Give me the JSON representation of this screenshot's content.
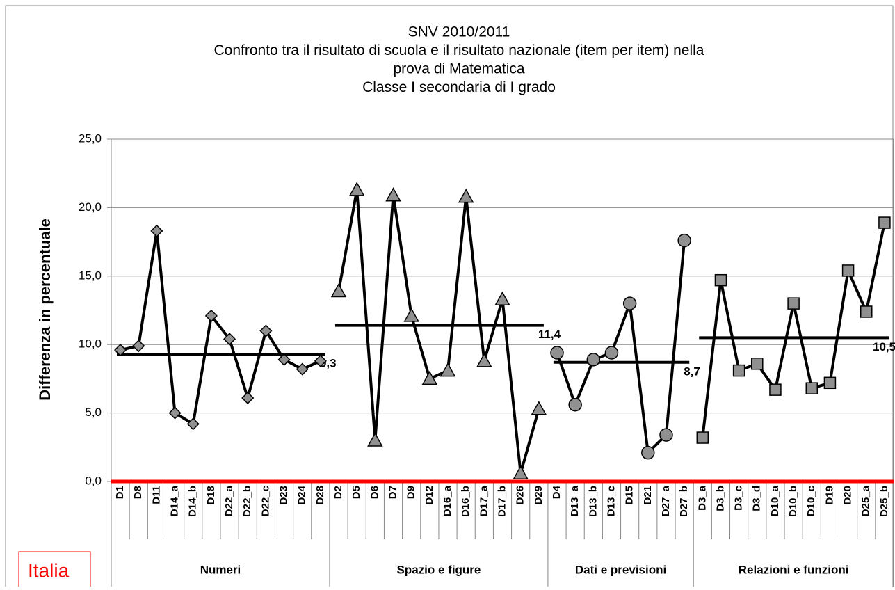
{
  "chart_data": {
    "type": "line",
    "title": [
      "SNV 2010/2011",
      "Confronto tra il risultato di scuola e il risultato nazionale (item per item) nella",
      "prova di Matematica",
      "Classe I secondaria di I grado"
    ],
    "y_label": "Differenza in percentuale",
    "ylim": [
      0,
      25
    ],
    "yticks": [
      {
        "value": 0,
        "label": "0,0"
      },
      {
        "value": 5,
        "label": "5,0"
      },
      {
        "value": 10,
        "label": "10,0"
      },
      {
        "value": 15,
        "label": "15,0"
      },
      {
        "value": 20,
        "label": "20,0"
      },
      {
        "value": 25,
        "label": "25,0"
      }
    ],
    "grid": true,
    "groups": [
      {
        "name": "Numeri",
        "marker": "diamond",
        "color": "#909090",
        "categories": [
          "D1",
          "D8",
          "D11",
          "D14_a",
          "D14_b",
          "D18",
          "D22_a",
          "D22_b",
          "D22_c",
          "D23",
          "D24",
          "D28"
        ],
        "values": [
          9.6,
          9.9,
          18.3,
          5.0,
          4.2,
          12.1,
          10.4,
          6.1,
          11.0,
          8.9,
          8.2,
          8.8
        ],
        "mean": 9.3,
        "mean_label": "9,3"
      },
      {
        "name": "Spazio e figure",
        "marker": "triangle",
        "color": "#909090",
        "categories": [
          "D2",
          "D5",
          "D6",
          "D7",
          "D9",
          "D12",
          "D16_a",
          "D16_b",
          "D17_a",
          "D17_b",
          "D26",
          "D29"
        ],
        "values": [
          13.9,
          21.3,
          3.0,
          20.9,
          12.1,
          7.5,
          8.1,
          20.8,
          8.8,
          13.3,
          0.6,
          5.3
        ],
        "mean": 11.4,
        "mean_label": "11,4"
      },
      {
        "name": "Dati e previsioni",
        "marker": "circle",
        "color": "#909090",
        "categories": [
          "D4",
          "D13_a",
          "D13_b",
          "D13_c",
          "D15",
          "D21",
          "D27_a",
          "D27_b"
        ],
        "values": [
          9.4,
          5.6,
          8.9,
          9.4,
          13.0,
          2.1,
          3.4,
          17.6
        ],
        "mean": 8.7,
        "mean_label": "8,7"
      },
      {
        "name": "Relazioni e funzioni",
        "marker": "square",
        "color": "#909090",
        "categories": [
          "D3_a",
          "D3_b",
          "D3_c",
          "D3_d",
          "D10_a",
          "D10_b",
          "D10_c",
          "D19",
          "D20",
          "D25_a",
          "D25_b"
        ],
        "values": [
          3.2,
          14.7,
          8.1,
          8.6,
          6.7,
          13.0,
          6.8,
          7.2,
          15.4,
          12.4,
          18.9
        ],
        "mean": 10.5,
        "mean_label": "10,5"
      }
    ],
    "baseline": {
      "name": "Italia",
      "value": 0,
      "color": "#ff0000"
    }
  }
}
